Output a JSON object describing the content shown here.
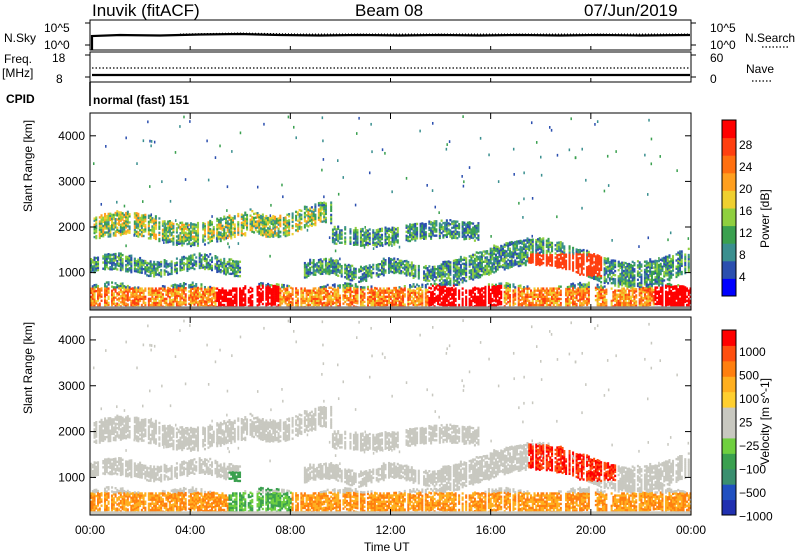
{
  "header": {
    "station": "Inuvik (fitACF)",
    "beam": "Beam 08",
    "date": "07/Jun/2019"
  },
  "sky_panel": {
    "left_label": "N.Sky",
    "right_label": "N.Search",
    "left_ticks": [
      "10^5",
      "10^0"
    ],
    "right_ticks": [
      "10^5",
      "10^0"
    ]
  },
  "freq_panel": {
    "left_label_top": "Freq.",
    "left_label_unit": "[MHz]",
    "right_label": "Nave",
    "left_ticks": [
      "18",
      "8"
    ],
    "right_ticks": [
      "60",
      "0"
    ]
  },
  "cpid": {
    "label": "CPID",
    "value": "normal (fast) 151"
  },
  "chart_data": [
    {
      "type": "heatmap",
      "title": "",
      "xlabel": "Time UT",
      "ylabel": "Slant Range [km]",
      "x_ticks": [
        "00:00",
        "04:00",
        "08:00",
        "12:00",
        "16:00",
        "20:00",
        "00:00"
      ],
      "y_ticks": [
        "1000",
        "2000",
        "3000",
        "4000"
      ],
      "ylim": [
        180,
        4500
      ],
      "colorbar": {
        "label": "Power [dB]",
        "ticks": [
          "4",
          "8",
          "12",
          "16",
          "20",
          "24",
          "28"
        ],
        "colors": [
          "#0000ff",
          "#2b4faf",
          "#3a8f8f",
          "#3aa04f",
          "#8fcf3f",
          "#efcf2f",
          "#ff9f1f",
          "#ff6f0f",
          "#ff3f0f",
          "#ff0000"
        ]
      }
    },
    {
      "type": "heatmap",
      "title": "",
      "xlabel": "Time UT",
      "ylabel": "Slant Range [km]",
      "x_ticks": [
        "00:00",
        "04:00",
        "08:00",
        "12:00",
        "16:00",
        "20:00",
        "00:00"
      ],
      "y_ticks": [
        "1000",
        "2000",
        "3000",
        "4000"
      ],
      "ylim": [
        180,
        4500
      ],
      "colorbar": {
        "label": "Velocity [m s^-1]",
        "ticks": [
          "1000",
          "500",
          "100",
          "25",
          "−25",
          "−100",
          "−500",
          "−1000"
        ],
        "colors": [
          "#2030b0",
          "#2050c0",
          "#3a8f6f",
          "#3aa04f",
          "#6fcf3f",
          "#c8c8c0",
          "#c8c8c0",
          "#ffcf2f",
          "#ffaf1f",
          "#ff7f0f",
          "#ff4f0f",
          "#ff0000"
        ]
      }
    }
  ]
}
